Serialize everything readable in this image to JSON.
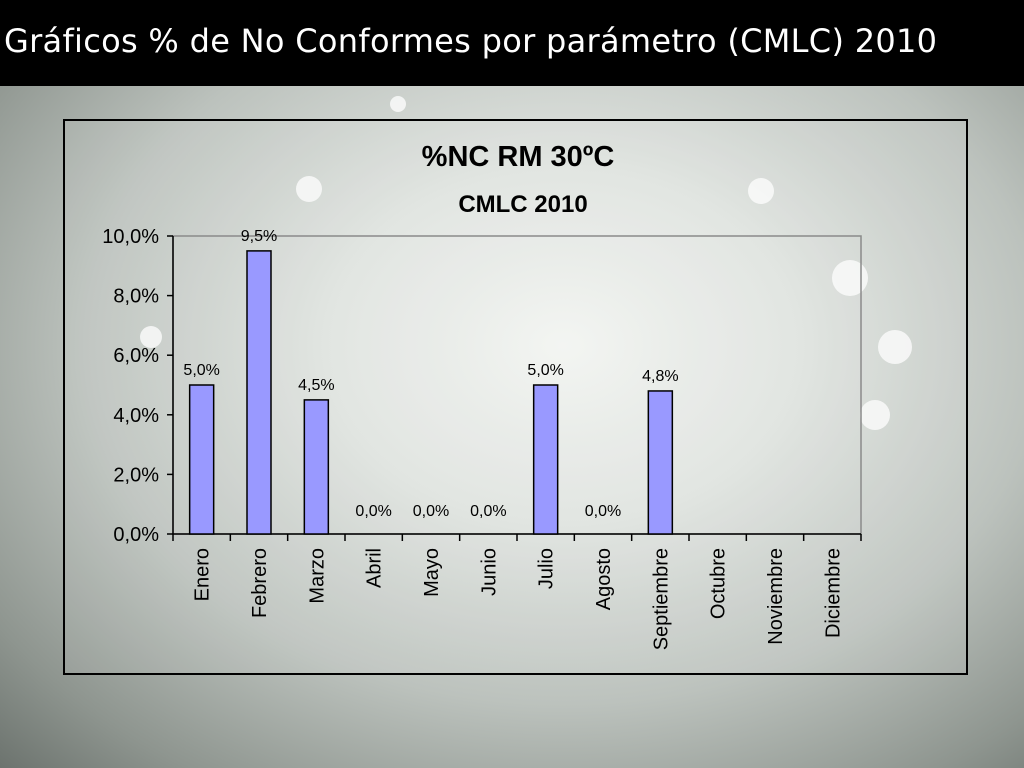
{
  "slide": {
    "title": "Gráficos % de No Conformes por parámetro (CMLC) 2010"
  },
  "chart_data": {
    "type": "bar",
    "title": "%NC RM 30ºC",
    "subtitle": "CMLC 2010",
    "xlabel": "",
    "ylabel": "",
    "ylim": [
      0,
      10
    ],
    "y_ticks": [
      "0,0%",
      "2,0%",
      "4,0%",
      "6,0%",
      "8,0%",
      "10,0%"
    ],
    "y_tick_values": [
      0,
      2,
      4,
      6,
      8,
      10
    ],
    "grid": false,
    "legend": "none",
    "bar_color": "#9999ff",
    "categories": [
      "Enero",
      "Febrero",
      "Marzo",
      "Abril",
      "Mayo",
      "Junio",
      "Julio",
      "Agosto",
      "Septiembre",
      "Octubre",
      "Noviembre",
      "Diciembre"
    ],
    "values": [
      5.0,
      9.5,
      4.5,
      0.0,
      0.0,
      0.0,
      5.0,
      0.0,
      4.8,
      null,
      null,
      null
    ],
    "data_labels": [
      "5,0%",
      "9,5%",
      "4,5%",
      "0,0%",
      "0,0%",
      "0,0%",
      "5,0%",
      "0,0%",
      "4,8%",
      "",
      "",
      ""
    ]
  }
}
